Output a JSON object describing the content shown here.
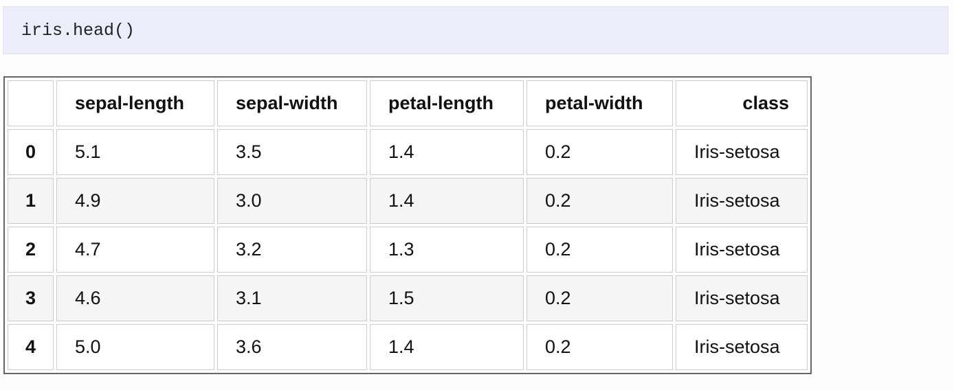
{
  "code_cell": {
    "source": "iris.head()"
  },
  "table": {
    "columns": [
      "",
      "sepal-length",
      "sepal-width",
      "petal-length",
      "petal-width",
      "class"
    ],
    "rows": [
      [
        "0",
        "5.1",
        "3.5",
        "1.4",
        "0.2",
        "Iris-setosa"
      ],
      [
        "1",
        "4.9",
        "3.0",
        "1.4",
        "0.2",
        "Iris-setosa"
      ],
      [
        "2",
        "4.7",
        "3.2",
        "1.3",
        "0.2",
        "Iris-setosa"
      ],
      [
        "3",
        "4.6",
        "3.1",
        "1.5",
        "0.2",
        "Iris-setosa"
      ],
      [
        "4",
        "5.0",
        "3.6",
        "1.4",
        "0.2",
        "Iris-setosa"
      ]
    ]
  }
}
